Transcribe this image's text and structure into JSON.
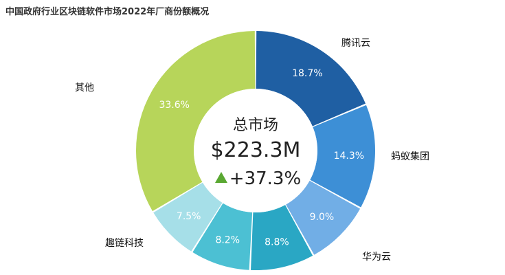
{
  "chart_data": {
    "type": "pie",
    "title": "中国政府行业区块链软件市场2022年厂商份额概况",
    "center": {
      "label": "总市场",
      "value": "$223.3M",
      "growth": "+37.3%"
    },
    "slices": [
      {
        "name": "腾讯云",
        "value": 18.7,
        "label": "18.7%",
        "color": "#1f5fa3"
      },
      {
        "name": "蚂蚁集团",
        "value": 14.3,
        "label": "14.3%",
        "color": "#3d8fd6"
      },
      {
        "name": "华为云",
        "value": 9.0,
        "label": "9.0%",
        "color": "#71aee6"
      },
      {
        "name": "",
        "value": 8.8,
        "label": "8.8%",
        "color": "#2aa7c4"
      },
      {
        "name": "",
        "value": 8.2,
        "label": "8.2%",
        "color": "#4cc0d3"
      },
      {
        "name": "趣链科技",
        "value": 7.5,
        "label": "7.5%",
        "color": "#a6dfe8"
      },
      {
        "name": "其他",
        "value": 33.6,
        "label": "33.6%",
        "color": "#b7d55a"
      }
    ],
    "growth_arrow_color": "#5aa832"
  }
}
